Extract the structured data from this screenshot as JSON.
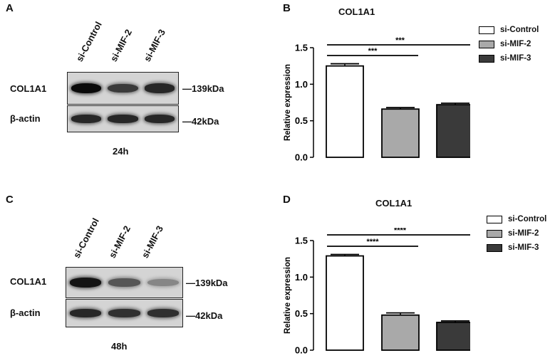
{
  "panels": {
    "A": {
      "letter": "A",
      "lanes": [
        "si-Control",
        "si-MIF-2",
        "si-MIF-3"
      ],
      "rows": [
        {
          "label": "COL1A1",
          "size": "139kDa",
          "intensities": [
            1.0,
            0.75,
            0.85
          ]
        },
        {
          "label": "β-actin",
          "size": "42kDa",
          "intensities": [
            0.85,
            0.85,
            0.85
          ]
        }
      ],
      "time": "24h"
    },
    "C": {
      "letter": "C",
      "lanes": [
        "si-Control",
        "si-MIF-2",
        "si-MIF-3"
      ],
      "rows": [
        {
          "label": "COL1A1",
          "size": "139kDa",
          "intensities": [
            0.95,
            0.6,
            0.35
          ]
        },
        {
          "label": "β-actin",
          "size": "42kDa",
          "intensities": [
            0.85,
            0.8,
            0.8
          ]
        }
      ],
      "time": "48h"
    },
    "B": {
      "letter": "B"
    },
    "D": {
      "letter": "D"
    }
  },
  "legend": {
    "colors": [
      "#ffffff",
      "#a9a9a9",
      "#3a3a3a"
    ]
  },
  "chart_data": [
    {
      "type": "bar",
      "title": "COL1A1",
      "ylabel": "Relative expression",
      "xlabel": "",
      "categories": [
        "si-Control",
        "si-MIF-2",
        "si-MIF-3"
      ],
      "values": [
        1.25,
        0.66,
        0.72
      ],
      "errors": [
        0.03,
        0.02,
        0.02
      ],
      "colors": [
        "#ffffff",
        "#a9a9a9",
        "#3a3a3a"
      ],
      "ylim": [
        0,
        1.5
      ],
      "yticks": [
        "0.0",
        "0.5",
        "1.0",
        "1.5"
      ],
      "legend_position": "top-right",
      "legend": [
        "si-Control",
        "si-MIF-2",
        "si-MIF-3"
      ],
      "significance": [
        {
          "from": 0,
          "to": 1,
          "label": "***"
        },
        {
          "from": 0,
          "to": 2,
          "label": "***"
        }
      ]
    },
    {
      "type": "bar",
      "title": "COL1A1",
      "ylabel": "Relative expression",
      "xlabel": "",
      "categories": [
        "si-Control",
        "si-MIF-2",
        "si-MIF-3"
      ],
      "values": [
        1.29,
        0.48,
        0.38
      ],
      "errors": [
        0.02,
        0.03,
        0.02
      ],
      "colors": [
        "#ffffff",
        "#a9a9a9",
        "#3a3a3a"
      ],
      "ylim": [
        0,
        1.5
      ],
      "yticks": [
        "0.0",
        "0.5",
        "1.0",
        "1.5"
      ],
      "legend_position": "top-right",
      "legend": [
        "si-Control",
        "si-MIF-2",
        "si-MIF-3"
      ],
      "significance": [
        {
          "from": 0,
          "to": 1,
          "label": "****"
        },
        {
          "from": 0,
          "to": 2,
          "label": "****"
        }
      ]
    }
  ]
}
